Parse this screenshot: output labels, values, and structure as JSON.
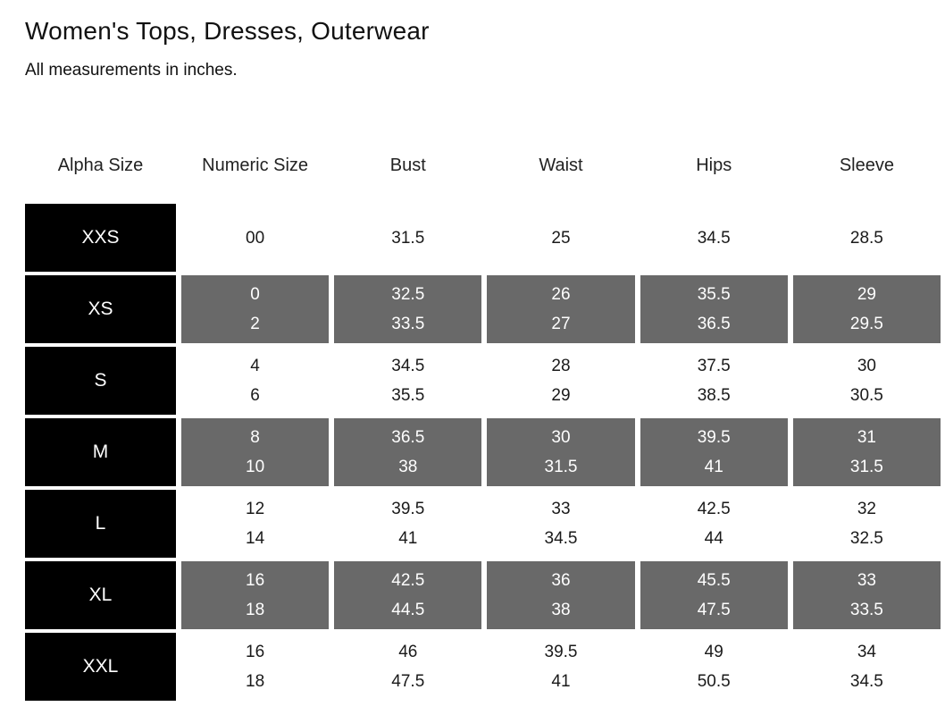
{
  "page": {
    "title": "Women's Tops, Dresses, Outerwear",
    "subtitle": "All measurements in inches."
  },
  "table": {
    "columns": [
      "Alpha Size",
      "Numeric Size",
      "Bust",
      "Waist",
      "Hips",
      "Sleeve"
    ],
    "measure_keys": [
      "numeric",
      "bust",
      "waist",
      "hips",
      "sleeve"
    ],
    "rows": [
      {
        "alpha": "XXS",
        "shaded": false,
        "numeric": [
          "00"
        ],
        "bust": [
          "31.5"
        ],
        "waist": [
          "25"
        ],
        "hips": [
          "34.5"
        ],
        "sleeve": [
          "28.5"
        ]
      },
      {
        "alpha": "XS",
        "shaded": true,
        "numeric": [
          "0",
          "2"
        ],
        "bust": [
          "32.5",
          "33.5"
        ],
        "waist": [
          "26",
          "27"
        ],
        "hips": [
          "35.5",
          "36.5"
        ],
        "sleeve": [
          "29",
          "29.5"
        ]
      },
      {
        "alpha": "S",
        "shaded": false,
        "numeric": [
          "4",
          "6"
        ],
        "bust": [
          "34.5",
          "35.5"
        ],
        "waist": [
          "28",
          "29"
        ],
        "hips": [
          "37.5",
          "38.5"
        ],
        "sleeve": [
          "30",
          "30.5"
        ]
      },
      {
        "alpha": "M",
        "shaded": true,
        "numeric": [
          "8",
          "10"
        ],
        "bust": [
          "36.5",
          "38"
        ],
        "waist": [
          "30",
          "31.5"
        ],
        "hips": [
          "39.5",
          "41"
        ],
        "sleeve": [
          "31",
          "31.5"
        ]
      },
      {
        "alpha": "L",
        "shaded": false,
        "numeric": [
          "12",
          "14"
        ],
        "bust": [
          "39.5",
          "41"
        ],
        "waist": [
          "33",
          "34.5"
        ],
        "hips": [
          "42.5",
          "44"
        ],
        "sleeve": [
          "32",
          "32.5"
        ]
      },
      {
        "alpha": "XL",
        "shaded": true,
        "numeric": [
          "16",
          "18"
        ],
        "bust": [
          "42.5",
          "44.5"
        ],
        "waist": [
          "36",
          "38"
        ],
        "hips": [
          "45.5",
          "47.5"
        ],
        "sleeve": [
          "33",
          "33.5"
        ]
      },
      {
        "alpha": "XXL",
        "shaded": false,
        "numeric": [
          "16",
          "18"
        ],
        "bust": [
          "46",
          "47.5"
        ],
        "waist": [
          "39.5",
          "41"
        ],
        "hips": [
          "49",
          "50.5"
        ],
        "sleeve": [
          "34",
          "34.5"
        ]
      }
    ]
  },
  "colors": {
    "alpha_cell_bg": "#000000",
    "shaded_cell_bg": "#696969",
    "text_dark": "#1a1a1a",
    "text_light": "#ffffff",
    "page_bg": "#ffffff"
  }
}
